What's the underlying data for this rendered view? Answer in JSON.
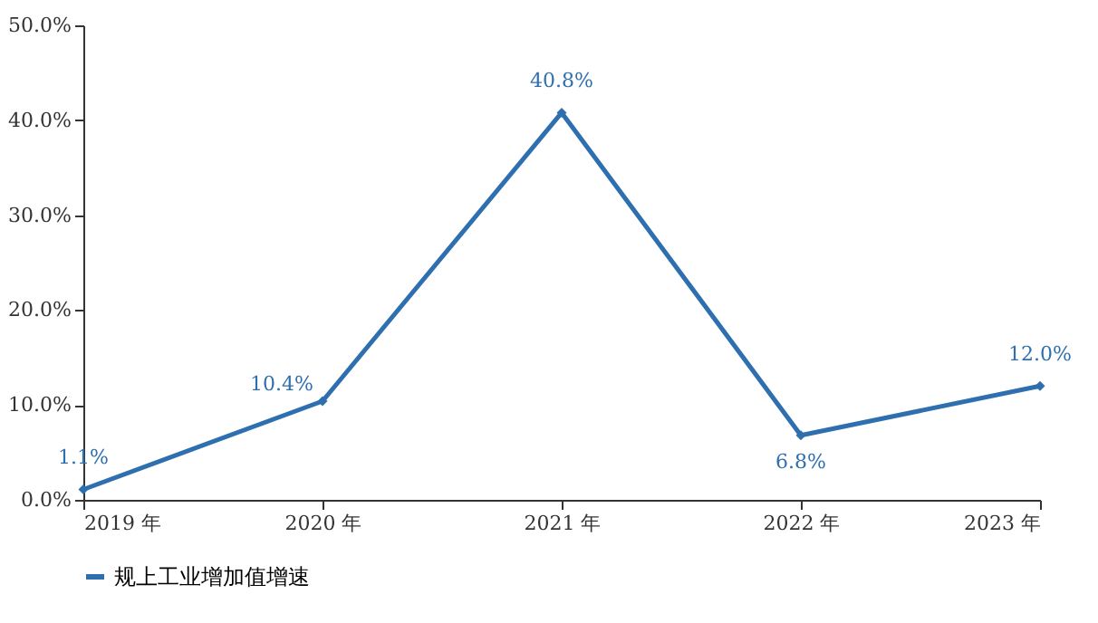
{
  "chart_data": {
    "type": "line",
    "categories": [
      "2019 年",
      "2020 年",
      "2021 年",
      "2022 年",
      "2023 年"
    ],
    "series": [
      {
        "name": "规上工业增加值增速",
        "color": "#2e6fb0",
        "values": [
          1.1,
          10.4,
          40.8,
          6.8,
          12.0
        ],
        "value_labels": [
          "1.1%",
          "10.4%",
          "40.8%",
          "6.8%",
          "12.0%"
        ]
      }
    ],
    "ylim": [
      0,
      50
    ],
    "yticks": [
      {
        "value": 0,
        "label": "0.0%"
      },
      {
        "value": 10,
        "label": "10.0%"
      },
      {
        "value": 20,
        "label": "20.0%"
      },
      {
        "value": 30,
        "label": "30.0%"
      },
      {
        "value": 40,
        "label": "40.0%"
      },
      {
        "value": 50,
        "label": "50.0%"
      }
    ],
    "grid": false,
    "legend": "bottom",
    "marker": "diamond",
    "line_style": "solid"
  }
}
